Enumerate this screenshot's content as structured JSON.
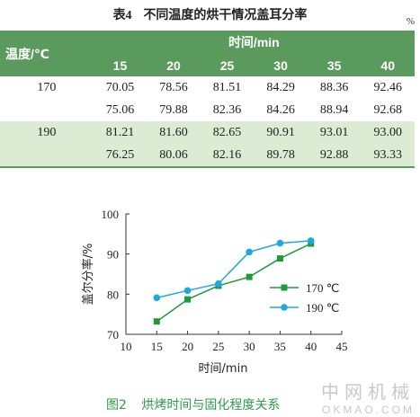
{
  "table": {
    "number": "表4",
    "title": "不同温度的烘干情况盖耳分率",
    "unit": "%",
    "row_header": "温度/℃",
    "col_group_header": "时间/min",
    "columns": [
      "15",
      "20",
      "25",
      "30",
      "35",
      "40"
    ],
    "groups": [
      {
        "temp": "170",
        "rows": [
          [
            "70.05",
            "78.56",
            "81.51",
            "84.29",
            "88.36",
            "92.46"
          ],
          [
            "75.06",
            "79.88",
            "82.36",
            "84.26",
            "88.94",
            "92.68"
          ]
        ]
      },
      {
        "temp": "190",
        "rows": [
          [
            "81.21",
            "81.60",
            "82.65",
            "90.91",
            "93.01",
            "93.00"
          ],
          [
            "76.25",
            "80.06",
            "82.16",
            "89.78",
            "92.88",
            "93.33"
          ]
        ]
      }
    ]
  },
  "figure": {
    "number": "图2",
    "caption": "烘烤时间与固化程度关系"
  },
  "chart_data": {
    "type": "line",
    "title": "",
    "xlabel": "时间/min",
    "ylabel": "盖尔分率/%",
    "xlim": [
      10,
      45
    ],
    "ylim": [
      70,
      100
    ],
    "xticks": [
      10,
      15,
      20,
      25,
      30,
      35,
      40,
      45
    ],
    "yticks": [
      70,
      80,
      90,
      100
    ],
    "legend_position": "right",
    "series": [
      {
        "name": "170 ℃",
        "marker": "square",
        "color": "#1f9a3a",
        "x": [
          15,
          20,
          25,
          30,
          35,
          40
        ],
        "y": [
          73.2,
          78.7,
          82.1,
          84.3,
          88.9,
          92.6
        ]
      },
      {
        "name": "190 ℃",
        "marker": "circle",
        "color": "#1ea8e0",
        "x": [
          15,
          20,
          25,
          30,
          35,
          40
        ],
        "y": [
          79.1,
          80.9,
          82.6,
          90.5,
          92.7,
          93.3
        ]
      }
    ]
  },
  "watermark": {
    "cn": "中网机械",
    "en": "OKMAO.COM"
  }
}
